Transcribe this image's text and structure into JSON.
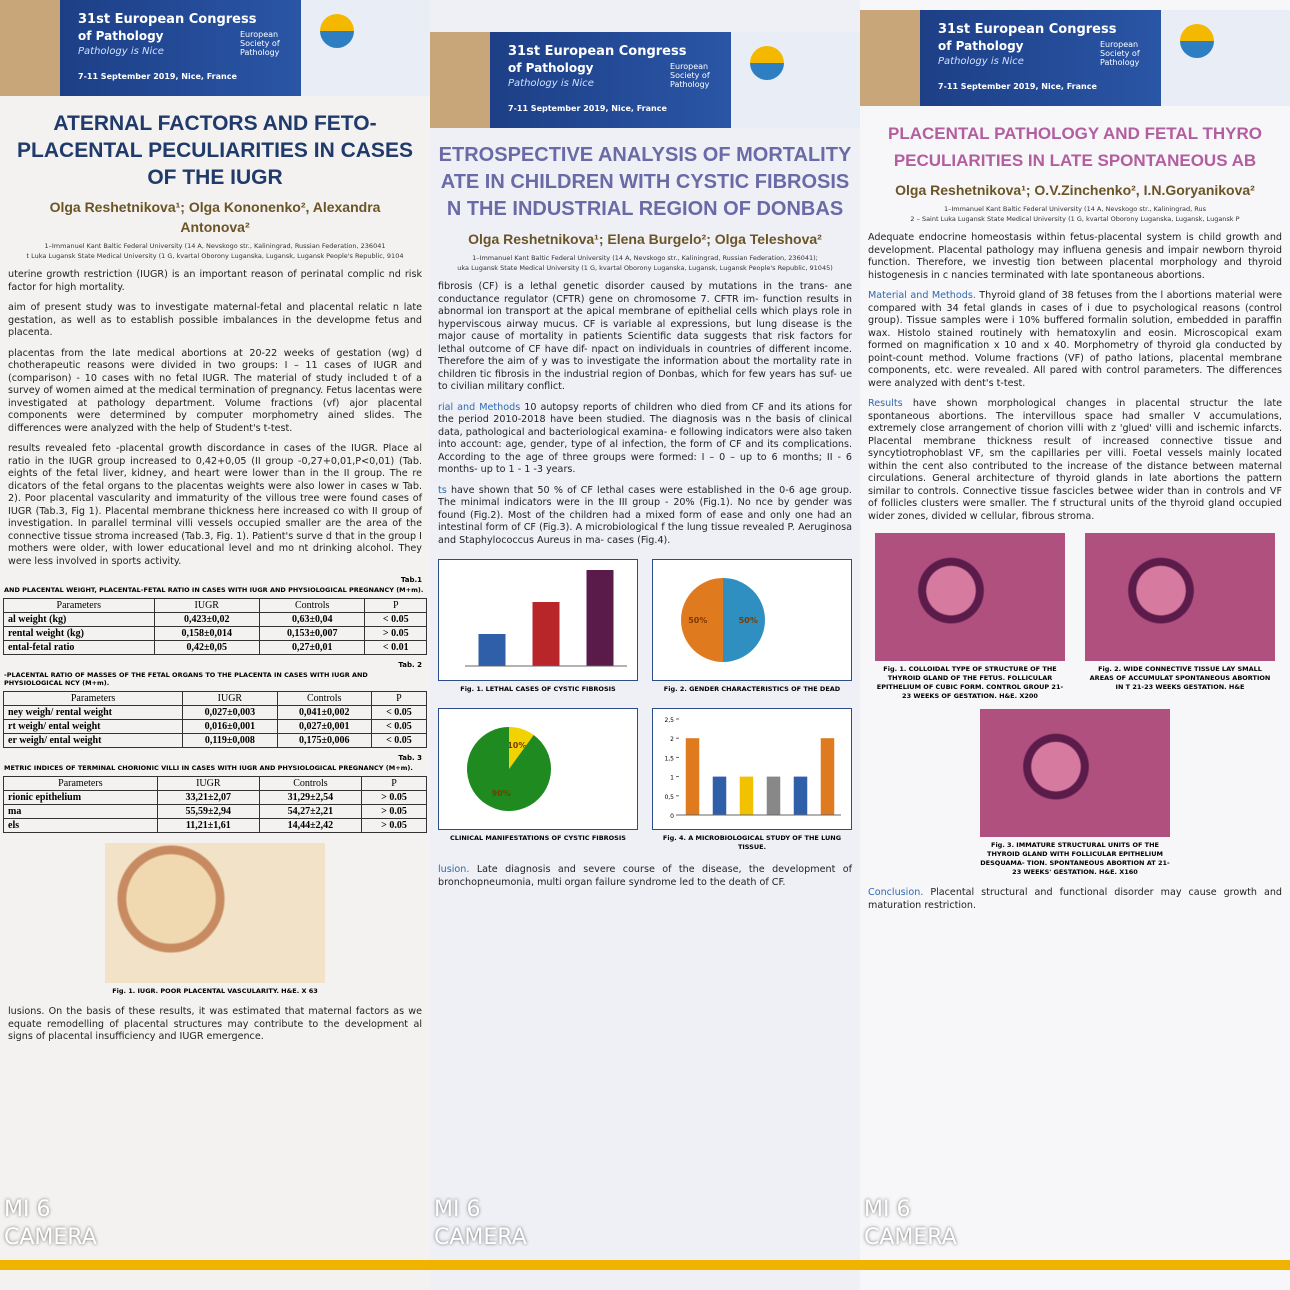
{
  "header": {
    "congress": "31st European Congress",
    "congress_line2": "of Pathology",
    "tagline": "Pathology is Nice",
    "dates": "7-11 September 2019, Nice, France",
    "society": "European Society of Pathology"
  },
  "watermark": [
    "MI 6",
    "CAMERA"
  ],
  "posters": [
    {
      "title": "ATERNAL FACTORS AND FETO-PLACENTAL PECULIARITIES IN CASES OF THE IUGR",
      "authors": "Olga Reshetnikova¹; Olga Kononenko², Alexandra Antonova²",
      "affiliations": [
        "1–Immanuel Kant Baltic Federal University (14 A, Nevskogo str., Kaliningrad, Russian Federation, 236041",
        "t Luka Lugansk State Medical University (1 G, kvartal Oborony Luganska, Lugansk, Lugansk People's Republic, 9104"
      ],
      "blocks": [
        {
          "text": "uterine growth restriction (IUGR) is an important reason of perinatal complic nd risk factor for high mortality."
        },
        {
          "text": "aim of present study was to investigate maternal-fetal and placental relatic n late gestation, as well as to establish possible imbalances in the developme fetus and placenta."
        },
        {
          "text": "placentas from the late medical abortions at 20-22 weeks of gestation (wg) d chotherapeutic reasons were divided in two groups: I – 11 cases of IUGR and (comparison) - 10 cases with no fetal IUGR. The material of study included t of a survey of women aimed at the medical termination of pregnancy. Fetus lacentas were investigated at pathology department. Volume fractions (vf) ajor placental components were determined by computer morphometry ained slides. The differences were analyzed with the help of Student's t-test."
        },
        {
          "text": "results revealed feto -placental growth discordance in cases of the IUGR. Place al ratio in the IUGR group increased to 0,42+0,05 (II group -0,27+0,01,P<0,01) (Tab. eights of the fetal liver, kidney, and heart were lower than in the II group. The re dicators of the fetal organs to the placentas weights were also lower in cases w Tab. 2). Poor placental vascularity and immaturity of the villous tree were found cases of IUGR (Tab.3, Fig 1). Placental membrane thickness here increased co with II group of investigation. In parallel terminal villi vessels occupied smaller are the area of the connective tissue stroma increased (Tab.3, Fig. 1). Patient's surve d that in the group I mothers were older, with lower educational level and mo nt drinking alcohol. They were less involved in sports activity."
        },
        {
          "tab": "Tab.1",
          "title": "AND PLACENTAL WEIGHT, PLACENTAL-FETAL RATIO IN CASES WITH IUGR AND PHYSIOLOGICAL PREGNANCY (M+m).",
          "columns": [
            "Parameters",
            "IUGR",
            "Controls",
            "P"
          ],
          "rows": [
            [
              "al weight (kg)",
              "0,423±0,02",
              "0,63±0,04",
              "< 0.05"
            ],
            [
              "rental weight (kg)",
              "0,158±0,014",
              "0,153±0,007",
              "> 0.05"
            ],
            [
              "ental-fetal ratio",
              "0,42±0,05",
              "0,27±0,01",
              "< 0.01"
            ]
          ]
        },
        {
          "tab": "Tab. 2",
          "title": "-PLACENTAL RATIO OF MASSES OF THE FETAL ORGANS TO THE PLACENTA IN CASES WITH IUGR AND PHYSIOLOGICAL NCY (M+m).",
          "columns": [
            "Parameters",
            "IUGR",
            "Controls",
            "P"
          ],
          "rows": [
            [
              "ney weigh/ rental weight",
              "0,027±0,003",
              "0,041±0,002",
              "< 0.05"
            ],
            [
              "rt weigh/ ental weight",
              "0,016±0,001",
              "0,027±0,001",
              "< 0.05"
            ],
            [
              "er weigh/ ental weight",
              "0,119±0,008",
              "0,175±0,006",
              "< 0.05"
            ]
          ]
        },
        {
          "tab": "Tab. 3",
          "title": "METRIC INDICES OF TERMINAL CHORIONIC VILLI IN CASES WITH IUGR AND PHYSIOLOGICAL PREGNANCY (M+m).",
          "columns": [
            "Parameters",
            "IUGR",
            "Controls",
            "P"
          ],
          "rows": [
            [
              "rionic epithelium",
              "33,21±2,07",
              "31,29±2,54",
              "> 0.05"
            ],
            [
              "ma",
              "55,59±2,94",
              "54,27±2,21",
              "> 0.05"
            ],
            [
              "els",
              "11,21±1,61",
              "14,44±2,42",
              "> 0.05"
            ]
          ]
        },
        {
          "figures": [
            "Fig. 1. IUGR. POOR PLACENTAL VASCULARITY. H&E. X 63"
          ]
        },
        {
          "text": "lusions. On the basis of these results, it was estimated that maternal factors as we equate remodelling of placental structures may contribute to the development al signs of placental insufficiency and IUGR emergence."
        }
      ]
    },
    {
      "title": "ETROSPECTIVE ANALYSIS OF MORTALITY ATE IN CHILDREN WITH CYSTIC FIBROSIS N THE INDUSTRIAL REGION OF DONBAS",
      "authors": "Olga Reshetnikova¹; Elena Burgelo²; Olga Teleshova²",
      "affiliations": [
        "1–Immanuel Kant Baltic Federal University (14 A, Nevskogo str., Kaliningrad, Russian Federation, 236041);",
        "uka Lugansk State Medical University (1 G, kvartal Oborony Luganska, Lugansk, Lugansk People's Republic, 91045)"
      ],
      "blocks": [
        {
          "text": "fibrosis (CF) is a lethal genetic disorder caused by mutations in the trans- ane conductance regulator (CFTR) gene on chromosome 7. CFTR im- function results in abnormal ion transport at the apical membrane of epithelial cells which plays role in hyperviscous airway mucus. CF is variable al expressions, but lung disease is the major cause of mortality in patients Scientific data suggests that risk factors for lethal outcome of CF have dif- npact on individuals in countries of different income. Therefore the aim of y was to investigate the information about the mortality rate in children tic fibrosis in the industrial region of Donbas, which for few years has suf- ue to civilian military conflict."
        },
        {
          "lead": "rial and Methods",
          "text": " 10 autopsy reports of children who died from CF and its ations for the period 2010-2018 have been studied. The diagnosis was n the basis of clinical data, pathological and bacteriological examina- e following indicators were also taken into account: age, gender, type of al infection, the form of CF and its complications. According to the age of three groups were formed: I – 0 – up to 6 months; II - 6 months- up to 1 - 1 -3 years."
        },
        {
          "lead": "ts",
          "text": " have shown that 50 % of CF lethal cases were established in the 0-6 age group. The minimal indicators were in the III group - 20% (Fig.1). No nce by gender was found (Fig.2). Most of the children had a mixed form of ease and only one had an intestinal form of CF (Fig.3). A microbiological f the lung tissue revealed P. Aeruginosa and Staphylococcus Aureus in ma- cases (Fig.4)."
        },
        {
          "charts": [
            {
              "type": "bar",
              "caption": "Fig. 1. LETHAL CASES OF CYSTIC FIBROSIS",
              "ylim": [
                0,
                3
              ],
              "values": [
                1,
                2,
                3
              ],
              "colors": [
                "#2f5fa8",
                "#b8262a",
                "#5a1a4a"
              ]
            },
            {
              "type": "pie",
              "caption": "Fig. 2. GENDER CHARACTERISTICS OF THE DEAD",
              "values": [
                50,
                50
              ],
              "value_labels": [
                "50%",
                "50%"
              ],
              "colors": [
                "#2f8fc0",
                "#e07a1e"
              ]
            },
            {
              "type": "pie",
              "caption": "CLINICAL MANIFESTATIONS OF CYSTIC FIBROSIS",
              "values": [
                10,
                90
              ],
              "value_labels": [
                "10%",
                "90%"
              ],
              "colors": [
                "#f2d200",
                "#1f8a1f"
              ]
            },
            {
              "type": "bar",
              "caption": "Fig. 4. A MICROBIOLOGICAL STUDY OF THE LUNG TISSUE.",
              "ylim": [
                0,
                2.5
              ],
              "yticks": [
                0,
                {
                  "value": 0.5,
                  "label": "0,5"
                },
                1,
                {
                  "value": 1.5,
                  "label": "1,5"
                },
                2,
                {
                  "value": 2.5,
                  "label": "2,5"
                }
              ],
              "values": [
                2,
                1,
                1,
                1,
                1,
                2
              ],
              "colors": [
                "#e07a1e",
                "#2f5fa8",
                "#f2c200",
                "#888888",
                "#2f5fa8",
                "#e07a1e"
              ]
            }
          ]
        },
        {
          "lead": "lusion.",
          "text": " Late diagnosis and severe course of the disease, the development of bronchopneumonia, multi organ failure syndrome led to the death of CF."
        }
      ]
    },
    {
      "title": "PLACENTAL PATHOLOGY AND FETAL THYRO PECULIARITIES IN LATE SPONTANEOUS AB",
      "authors": "Olga Reshetnikova¹; O.V.Zinchenko², I.N.Goryanikova²",
      "affiliations": [
        "1–Immanuel Kant Baltic Federal University (14 A, Nevskogo str., Kaliningrad, Rus",
        "2 – Saint Luka Lugansk State Medical University (1 G, kvartal Oborony Luganska, Lugansk, Lugansk P"
      ],
      "blocks": [
        {
          "text": "Adequate endocrine homeostasis within fetus-placental system is child growth and development. Placental pathology may influena genesis and impair newborn thyroid function. Therefore, we investig tion between placental morphology and thyroid histogenesis in c nancies terminated with late spontaneous abortions."
        },
        {
          "lead": "Material and Methods.",
          "text": " Thyroid gland of 38 fetuses from the l abortions material were compared with 34 fetal glands in cases of i due to psychological reasons (control group). Tissue samples were i 10% buffered formalin solution, embedded in paraffin wax. Histolo stained routinely with hematoxylin and eosin. Microscopical exam formed on magnification x 10 and x 40. Morphometry of thyroid gla conducted by point-count method. Volume fractions (VF) of patho lations, placental membrane components, etc. were revealed. All pared with control parameters. The differences were analyzed with dent's t-test."
        },
        {
          "lead": "Results",
          "text": " have shown morphological changes in placental structur the late spontaneous abortions. The intervillous space had smaller V accumulations, extremely close arrangement of chorion villi with z 'glued' villi and ischemic infarcts. Placental membrane thickness result of increased connective tissue and syncytiotrophoblast VF, sm the capillaries per villi. Foetal vessels mainly located within the cent also contributed to the increase of the distance between maternal circulations. General architecture of thyroid glands in late abortions the pattern similar to controls. Connective tissue fascicles betwee wider than in controls and VF of follicles clusters were smaller. The f structural units of the thyroid gland occupied wider zones, divided w cellular, fibrous stroma."
        },
        {
          "figures": [
            "Fig. 1. COLLOIDAL TYPE OF STRUCTURE OF THE THYROID GLAND OF THE FETUS. FOLLICULAR EPITHELIUM OF CUBIC FORM. CONTROL GROUP 21-23 WEEKS OF GESTATION. H&E. X200",
            "Fig. 2. WIDE CONNECTIVE TISSUE LAY SMALL AREAS OF ACCUMULAT SPONTANEOUS ABORTION IN T 21-23 WEEKS GESTATION. H&E",
            "Fig. 3. IMMATURE STRUCTURAL UNITS OF THE THYROID GLAND WITH FOLLICULAR EPITHELIUM DESQUAMA- TION. SPONTANEOUS ABORTION AT 21-23 WEEKS' GESTATION. H&E. X160"
          ]
        },
        {
          "lead": "Conclusion.",
          "text": " Placental structural and functional disorder may cause growth and maturation restriction."
        }
      ]
    }
  ]
}
